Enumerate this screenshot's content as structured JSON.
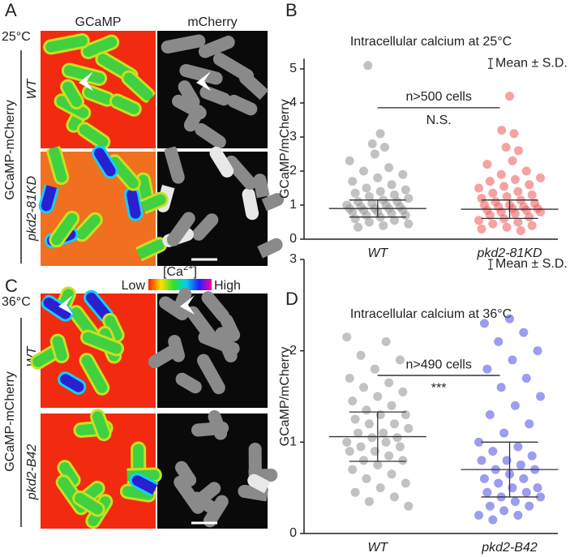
{
  "figure": {
    "panel_labels": [
      "A",
      "B",
      "C",
      "D"
    ],
    "temps": [
      "25°C",
      "36°C"
    ],
    "channels": [
      "GCaMP",
      "mCherry"
    ],
    "construct": "GCaMP-mCherry",
    "strains_a": [
      "WT",
      "pkd2-81KD"
    ],
    "strains_c": [
      "WT",
      "pkd2-B42"
    ],
    "colorbar": {
      "low": "Low",
      "high": "High",
      "label_base": "[Ca",
      "label_sup": "2+",
      "label_end": "]"
    }
  },
  "chart_data": [
    {
      "type": "strip",
      "title": "Intracellular calcium at 25°C",
      "ylabel": "GCaMP/mCherry",
      "legend": "Mean ± S.D.",
      "annotation": "n>500 cells",
      "significance": "N.S.",
      "categories": [
        "WT",
        "pkd2-81KD"
      ],
      "ylim": [
        0,
        5.3
      ],
      "yticks": [
        0,
        1,
        2,
        3,
        4,
        5
      ],
      "series": [
        {
          "name": "WT",
          "color": "#9a9a9a",
          "mean": 0.9,
          "sd": 0.25,
          "values": [
            5.1,
            3.1,
            2.8,
            2.7,
            2.5,
            2.3,
            2.1,
            2.0,
            1.9,
            1.8,
            1.7,
            1.6,
            1.5,
            1.45,
            1.4,
            1.35,
            1.3,
            1.25,
            1.2,
            1.15,
            1.1,
            1.1,
            1.05,
            1.0,
            1.0,
            0.95,
            0.95,
            0.9,
            0.9,
            0.9,
            0.85,
            0.85,
            0.8,
            0.8,
            0.75,
            0.7,
            0.7,
            0.65,
            0.6,
            0.55,
            0.5,
            0.45,
            0.4,
            0.35
          ]
        },
        {
          "name": "pkd2-81KD",
          "color": "#f06464",
          "mean": 0.88,
          "sd": 0.27,
          "values": [
            4.2,
            3.2,
            3.1,
            2.7,
            2.6,
            2.3,
            2.2,
            2.0,
            1.9,
            1.8,
            1.75,
            1.7,
            1.6,
            1.55,
            1.5,
            1.4,
            1.35,
            1.3,
            1.25,
            1.2,
            1.15,
            1.1,
            1.05,
            1.0,
            1.0,
            0.95,
            0.95,
            0.9,
            0.9,
            0.85,
            0.85,
            0.8,
            0.8,
            0.75,
            0.7,
            0.65,
            0.6,
            0.55,
            0.5,
            0.45,
            0.4,
            0.35,
            0.3,
            0.25
          ]
        }
      ]
    },
    {
      "type": "strip",
      "title": "Intracellular calcium at 36°C",
      "ylabel": "GCaMP/mCherry",
      "legend": "Mean ± S.D.",
      "annotation": "n>490 cells",
      "significance": "***",
      "categories": [
        "WT",
        "pkd2-B42"
      ],
      "ylim": [
        0,
        3
      ],
      "yticks": [
        0,
        1,
        2,
        3
      ],
      "series": [
        {
          "name": "WT",
          "color": "#9a9a9a",
          "mean": 1.06,
          "sd": 0.27,
          "values": [
            2.15,
            2.1,
            1.95,
            1.9,
            1.8,
            1.7,
            1.65,
            1.6,
            1.55,
            1.5,
            1.45,
            1.4,
            1.35,
            1.3,
            1.3,
            1.25,
            1.2,
            1.2,
            1.15,
            1.1,
            1.1,
            1.05,
            1.05,
            1.0,
            1.0,
            0.95,
            0.95,
            0.9,
            0.9,
            0.85,
            0.8,
            0.8,
            0.75,
            0.7,
            0.65,
            0.6,
            0.55,
            0.5,
            0.45,
            0.4,
            0.35,
            0.3
          ]
        },
        {
          "name": "pkd2-B42",
          "color": "#5a5ae6",
          "mean": 0.7,
          "sd": 0.3,
          "values": [
            2.35,
            2.3,
            2.2,
            2.1,
            2.0,
            1.9,
            1.8,
            1.7,
            1.6,
            1.5,
            1.4,
            1.3,
            1.2,
            1.1,
            1.0,
            0.95,
            0.9,
            0.85,
            0.8,
            0.8,
            0.75,
            0.7,
            0.7,
            0.65,
            0.6,
            0.6,
            0.55,
            0.5,
            0.5,
            0.45,
            0.45,
            0.4,
            0.4,
            0.35,
            0.3,
            0.3,
            0.25,
            0.2,
            0.2,
            0.15
          ]
        }
      ]
    }
  ]
}
